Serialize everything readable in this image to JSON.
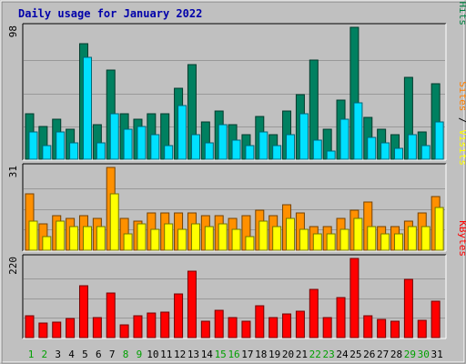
{
  "chart_data": {
    "type": "bar",
    "title": "Daily usage for January 2022",
    "categories": [
      "1",
      "2",
      "3",
      "4",
      "5",
      "6",
      "7",
      "8",
      "9",
      "10",
      "11",
      "12",
      "13",
      "14",
      "15",
      "16",
      "17",
      "18",
      "19",
      "20",
      "21",
      "22",
      "23",
      "24",
      "25",
      "26",
      "27",
      "28",
      "29",
      "30",
      "31"
    ],
    "weekend_days": [
      "1",
      "2",
      "8",
      "9",
      "15",
      "16",
      "22",
      "23",
      "29",
      "30"
    ],
    "panels": [
      {
        "name": "hits-files-pages",
        "axis_max": 98,
        "axis_label": "98",
        "legend": [
          {
            "text": "Pages",
            "color": "#00c0c0"
          },
          {
            "text": " / ",
            "color": "#000000"
          },
          {
            "text": "Files",
            "color": "#0040ff"
          },
          {
            "text": " / ",
            "color": "#000000"
          },
          {
            "text": "Hits",
            "color": "#008040"
          }
        ],
        "series": [
          {
            "name": "Hits",
            "color": "#008060",
            "values": [
              34,
              24,
              30,
              22,
              86,
              26,
              66,
              34,
              30,
              34,
              34,
              53,
              70,
              28,
              36,
              26,
              18,
              32,
              18,
              36,
              48,
              74,
              22,
              44,
              98,
              31,
              22,
              18,
              61,
              20,
              56
            ]
          },
          {
            "name": "Files",
            "color": "#00e0ff",
            "values": [
              20,
              10,
              20,
              12,
              76,
              12,
              34,
              22,
              24,
              18,
              10,
              40,
              18,
              12,
              26,
              14,
              10,
              20,
              10,
              18,
              34,
              14,
              6,
              30,
              42,
              16,
              12,
              8,
              18,
              10,
              28
            ]
          }
        ]
      },
      {
        "name": "visits-sites",
        "axis_max": 31,
        "axis_label": "31",
        "legend": [
          {
            "text": "Sites",
            "color": "#ff8000"
          },
          {
            "text": " / ",
            "color": "#000000"
          },
          {
            "text": "Visits",
            "color": "#ffff00"
          }
        ],
        "series": [
          {
            "name": "Visits",
            "color": "#ff9000",
            "values": [
              21,
              10,
              13,
              12,
              13,
              12,
              31,
              12,
              11,
              14,
              14,
              14,
              14,
              13,
              13,
              12,
              13,
              15,
              13,
              17,
              14,
              9,
              9,
              12,
              15,
              18,
              9,
              9,
              11,
              14,
              20
            ]
          },
          {
            "name": "Sites",
            "color": "#ffff00",
            "values": [
              11,
              5,
              11,
              9,
              9,
              9,
              21,
              6,
              10,
              8,
              10,
              8,
              10,
              9,
              10,
              8,
              5,
              11,
              9,
              12,
              8,
              6,
              6,
              8,
              12,
              9,
              6,
              6,
              9,
              9,
              16
            ]
          }
        ]
      },
      {
        "name": "kbytes",
        "axis_max": 220,
        "axis_label": "220",
        "legend": [
          {
            "text": "KBytes",
            "color": "#ff0000"
          }
        ],
        "series": [
          {
            "name": "KBytes",
            "color": "#ff0000",
            "values": [
              60,
              40,
              43,
              52,
              143,
              56,
              124,
              36,
              60,
              68,
              70,
              122,
              184,
              46,
              76,
              55,
              46,
              89,
              55,
              66,
              73,
              135,
              56,
              111,
              220,
              60,
              50,
              45,
              163,
              48,
              101
            ]
          }
        ]
      }
    ]
  }
}
